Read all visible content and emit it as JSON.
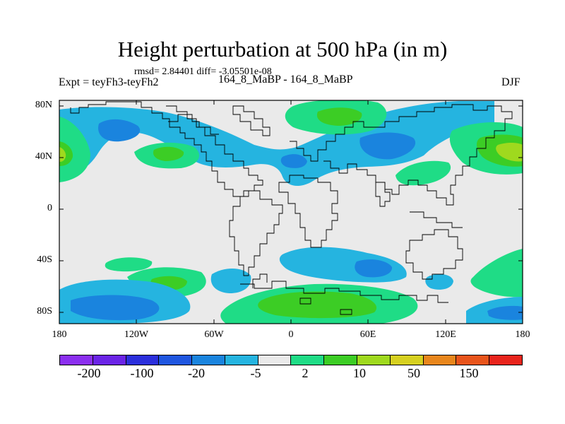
{
  "title": "Height perturbation at 500 hPa (in m)",
  "stats": "rmsd= 2.84401 diff= -3.05501e-08",
  "left_label": "Expt = teyFh3-teyFh2",
  "center_label": "164_8_MaBP - 164_8_MaBP",
  "right_label": "DJF",
  "lat_ticks": [
    "80N",
    "40N",
    "0",
    "40S",
    "80S"
  ],
  "lon_ticks": [
    "180",
    "120W",
    "60W",
    "0",
    "60E",
    "120E",
    "180"
  ],
  "colorbar": {
    "colors": [
      "#8b2fef",
      "#6b24e6",
      "#2b2fdc",
      "#1f56e0",
      "#1a84de",
      "#25b4e0",
      "#eaeaea",
      "#1fdc86",
      "#3ccd25",
      "#9fd91e",
      "#d6d020",
      "#e8861c",
      "#e8541b",
      "#e8241c"
    ],
    "labels": [
      "-200",
      "-100",
      "-20",
      "-5",
      "2",
      "10",
      "50",
      "150"
    ]
  },
  "legend_colors": {
    "neutral": "#eaeaea",
    "light_positive": "#1fdc86",
    "positive": "#3ccd25",
    "strong_positive": "#9fd91e",
    "light_negative": "#25b4e0",
    "negative": "#1a84de"
  }
}
